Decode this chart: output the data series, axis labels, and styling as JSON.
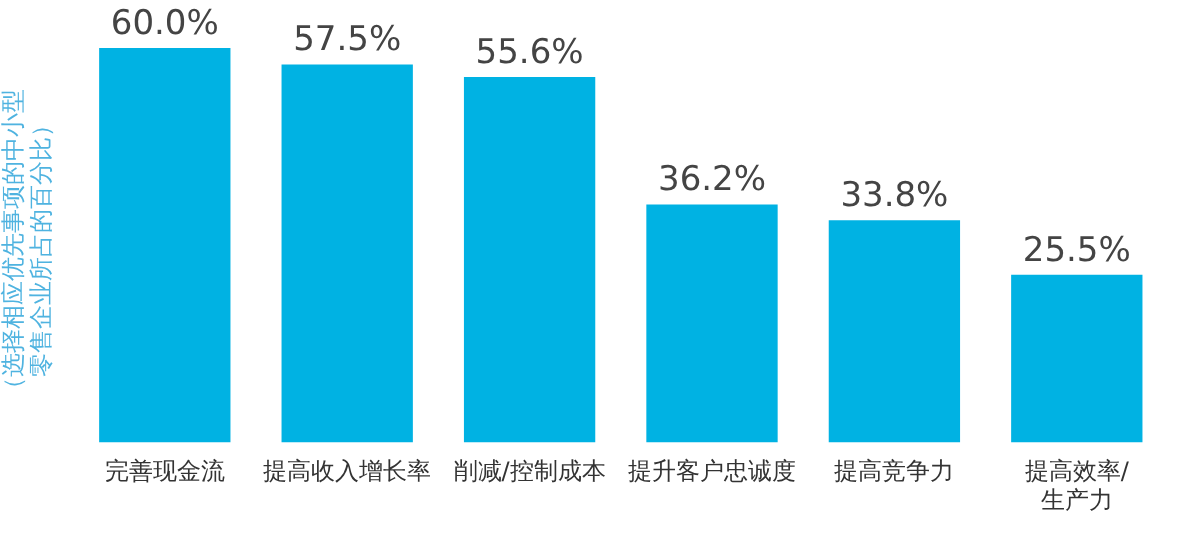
{
  "chart_data": {
    "type": "bar",
    "ylabel": "（选择相应优先事项的中小型零售企业所占的百分比）",
    "categories": [
      "完善现金流",
      "提高收入增长率",
      "削减/控制成本",
      "提升客户忠诚度",
      "提高竞争力",
      "提高效率/生产力"
    ],
    "values": [
      60.0,
      57.5,
      55.6,
      36.2,
      33.8,
      25.5
    ],
    "value_labels": [
      "60.0%",
      "57.5%",
      "55.6%",
      "36.2%",
      "33.8%",
      "25.5%"
    ],
    "color": "#00b2e3",
    "grid": false,
    "legend": false
  }
}
